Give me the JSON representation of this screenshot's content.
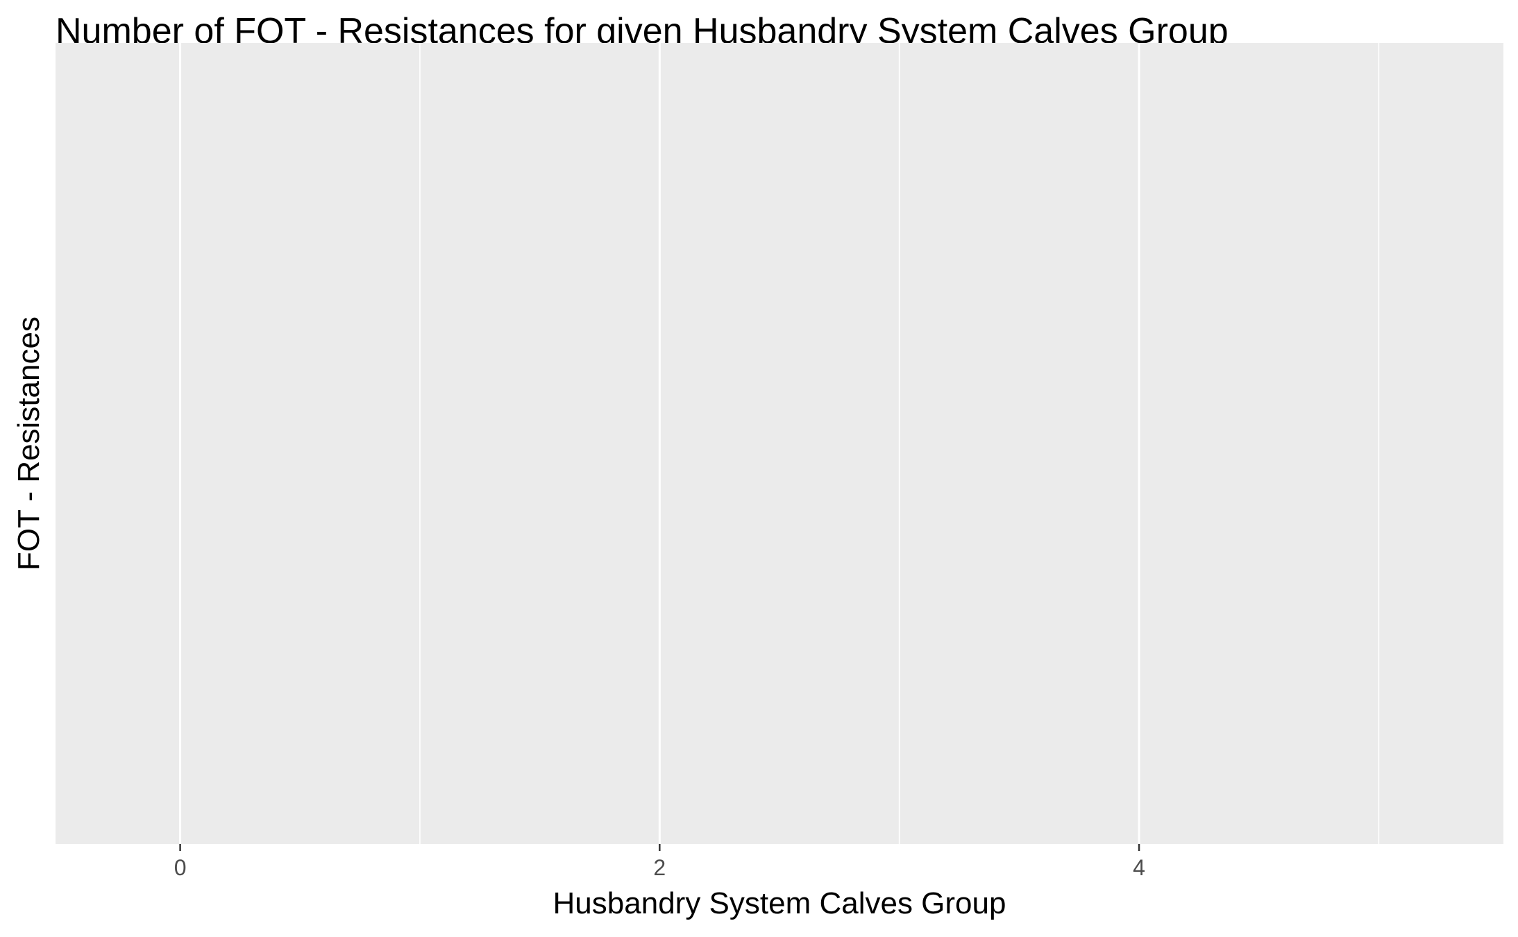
{
  "chart_data": {
    "type": "bar",
    "title": "Number of FOT - Resistances for given Husbandry System Calves Group",
    "xlabel": "Husbandry System Calves Group",
    "ylabel": "FOT - Resistances",
    "xlim": [
      -0.52,
      5.52
    ],
    "x_major_ticks": [
      0,
      2,
      4
    ],
    "x_minor_gridlines": [
      1,
      3,
      5
    ],
    "x_tick_labels": [
      "0",
      "2",
      "4"
    ],
    "y_tick_labels": [],
    "series": [],
    "grid": true,
    "legend": "none",
    "colors": {
      "panel_background": "#ebebeb",
      "grid_major": "#ffffff",
      "grid_minor": "#ffffff",
      "tick_text": "#4d4d4d",
      "tick_mark": "#333333"
    }
  }
}
